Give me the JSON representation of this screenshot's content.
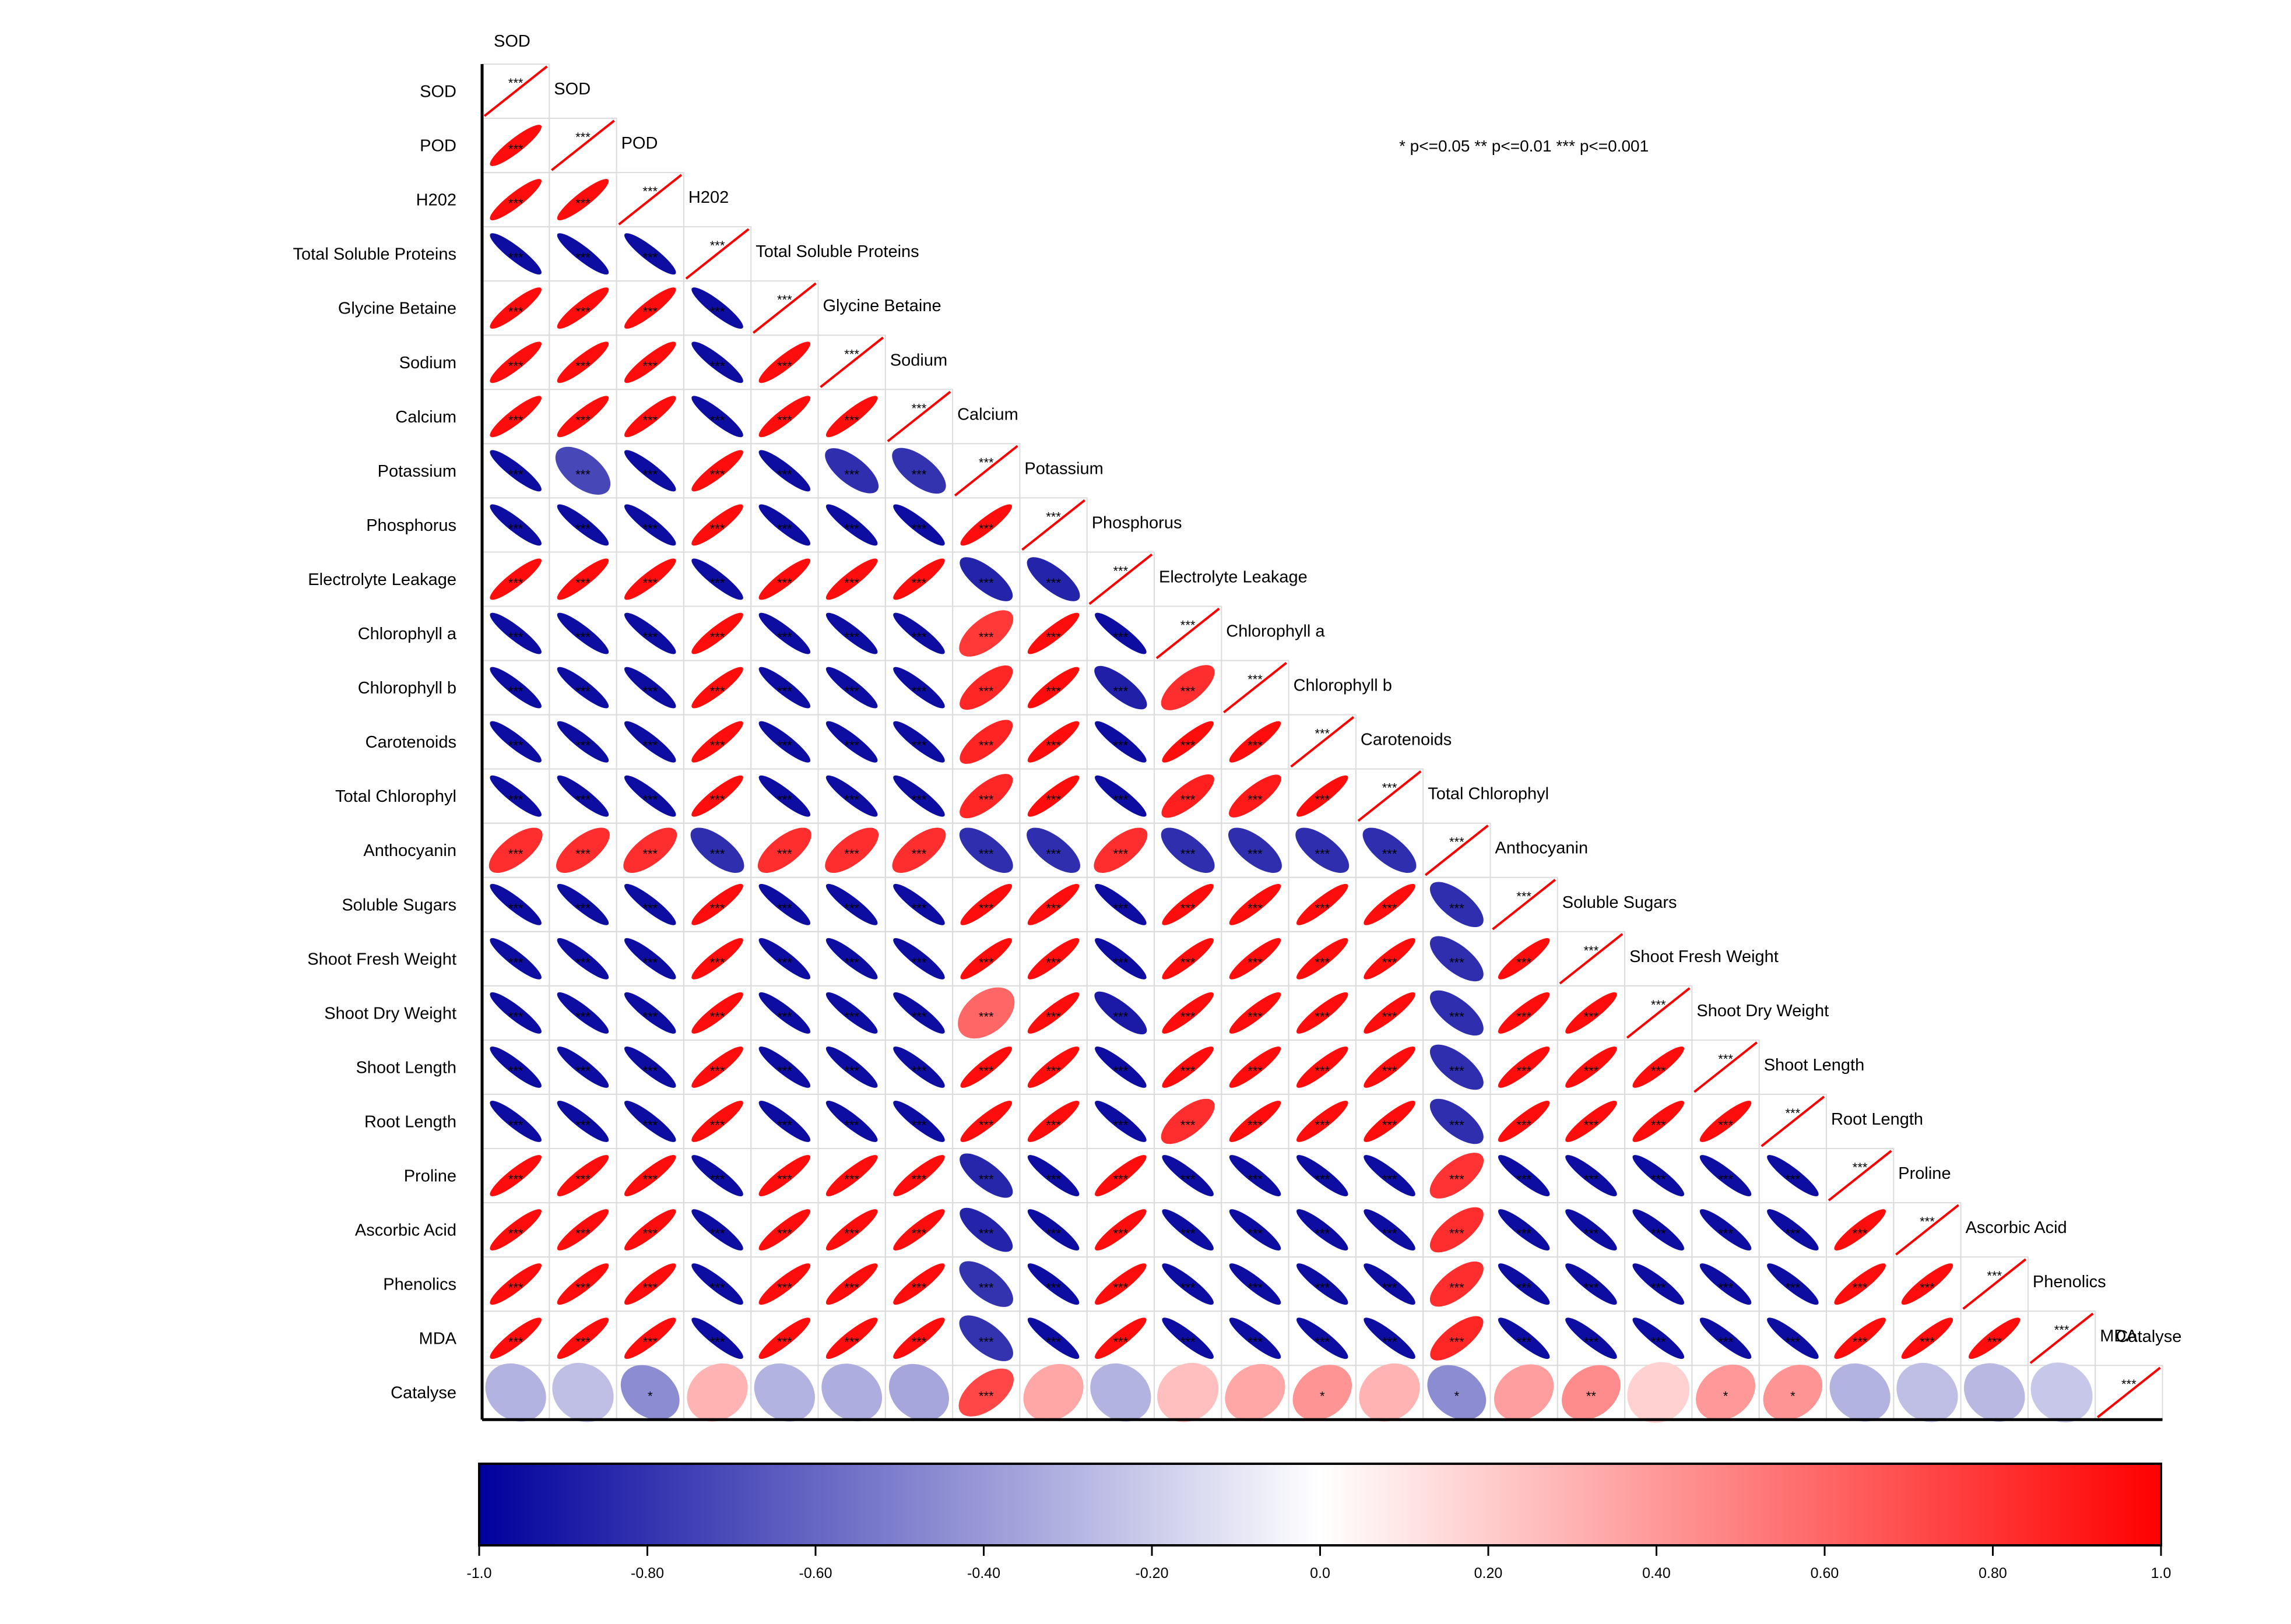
{
  "chart_data": {
    "type": "heatmap",
    "style": "correlation-ellipse-lower-triangle",
    "variables": [
      "SOD",
      "POD",
      "H202",
      "Total Soluble Proteins",
      "Glycine Betaine",
      "Sodium",
      "Calcium",
      "Potassium",
      "Phosphorus",
      "Electrolyte Leakage",
      "Chlorophyll a",
      "Chlorophyll b",
      "Carotenoids",
      "Total Chlorophyl",
      "Anthocyanin",
      "Soluble Sugars",
      "Shoot Fresh Weight",
      "Shoot Dry Weight",
      "Shoot Length",
      "Root Length",
      "Proline",
      "Ascorbic Acid",
      "Phenolics",
      "MDA",
      "Catalyse"
    ],
    "group_signs": [
      1,
      1,
      1,
      -1,
      1,
      1,
      1,
      -1,
      -1,
      1,
      -1,
      -1,
      -1,
      -1,
      1,
      -1,
      -1,
      -1,
      -1,
      -1,
      1,
      1,
      1,
      1
    ],
    "magnitudes": {
      "default": 0.95,
      "Anthocyanin": 0.82,
      "Potassium|POD": 0.72,
      "Potassium|Sodium": 0.82,
      "Potassium|Calcium": 0.8,
      "Potassium|Electrolyte Leakage": 0.86,
      "Potassium|Chlorophyll a": 0.78,
      "Potassium|Chlorophyll b": 0.85,
      "Potassium|Carotenoids": 0.86,
      "Potassium|Total Chlorophyl": 0.85,
      "Potassium|Shoot Dry Weight": 0.6,
      "Potassium|Proline": 0.85,
      "Potassium|Ascorbic Acid": 0.86,
      "Potassium|Phenolics": 0.8,
      "Potassium|MDA": 0.8,
      "Phosphorus|Electrolyte Leakage": 0.86,
      "Electrolyte Leakage|Chlorophyll b": 0.88,
      "Electrolyte Leakage|Shoot Dry Weight": 0.9,
      "Chlorophyll a|Chlorophyll b": 0.82,
      "Chlorophyll a|Total Chlorophyl": 0.88,
      "Chlorophyll a|Root Length": 0.82,
      "Chlorophyll b|Total Chlorophyl": 0.9,
      "Anthocyanin|Proline": 0.8,
      "Anthocyanin|MDA": 0.85
    },
    "last_row": {
      "name": "Catalyse",
      "values": [
        -0.3,
        -0.25,
        -0.45,
        0.3,
        -0.3,
        -0.32,
        -0.35,
        0.72,
        0.35,
        -0.3,
        0.25,
        0.35,
        0.42,
        0.3,
        -0.45,
        0.38,
        0.45,
        0.18,
        0.4,
        0.42,
        -0.3,
        -0.25,
        -0.28,
        -0.22
      ],
      "stars": [
        "",
        "",
        "*",
        "",
        "",
        "",
        "",
        "***",
        "",
        "",
        "",
        "",
        "*",
        "",
        "*",
        "",
        "**",
        "",
        "*",
        "*",
        "",
        "",
        "",
        ""
      ]
    },
    "diagonal_stars": "***",
    "off_diagonal_stars": "***",
    "legend_note": "* p<=0.05  ** p<=0.01  *** p<=0.001",
    "colorbar": {
      "range": [
        -1.0,
        1.0
      ],
      "colors": {
        "negative": "#00009c",
        "mid": "#ffffff",
        "positive": "#ff0000"
      },
      "ticks": [
        "-1.0",
        "-0.80",
        "-0.60",
        "-0.40",
        "-0.20",
        "0.0",
        "0.20",
        "0.40",
        "0.60",
        "0.80",
        "1.0"
      ]
    }
  }
}
